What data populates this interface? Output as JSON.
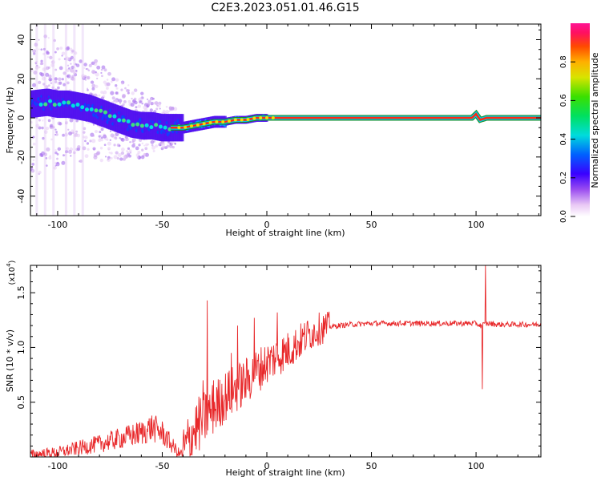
{
  "figure_title": "C2E3.2023.051.01.46.G15",
  "chart_data": [
    {
      "type": "heatmap",
      "name": "spectrogram",
      "title": "",
      "xlabel": "Height of straight line (km)",
      "ylabel": "Frequency (Hz)",
      "xlim": [
        -113,
        131
      ],
      "ylim": [
        -50,
        48
      ],
      "xticks": [
        -100,
        -50,
        0,
        50,
        100
      ],
      "yticks": [
        -40,
        -20,
        0,
        20,
        40
      ],
      "xtick_labels": [
        "-100",
        "-50",
        "0",
        "50",
        "100"
      ],
      "ytick_labels": [
        "-40",
        "-20",
        "0",
        "20",
        "40"
      ],
      "colorbar": {
        "label": "Normalized spectral amplitude",
        "range": [
          0,
          1
        ],
        "ticks": [
          0.0,
          0.2,
          0.4,
          0.6,
          0.8
        ],
        "tick_labels": [
          "0.0",
          "0.2",
          "0.4",
          "0.6",
          "0.8"
        ]
      },
      "ridge": {
        "x": [
          -113,
          -105,
          -100,
          -95,
          -90,
          -85,
          -80,
          -75,
          -70,
          -65,
          -60,
          -55,
          -50,
          -45,
          -40,
          -35,
          -30,
          -25,
          -20,
          -15,
          -10,
          -5,
          0,
          5,
          10,
          20,
          40,
          60,
          80,
          98,
          100,
          102,
          105,
          131
        ],
        "y": [
          7,
          8,
          7,
          7,
          6,
          5,
          3,
          1,
          -1,
          -3,
          -4,
          -4,
          -5,
          -5,
          -5,
          -4,
          -3,
          -2,
          -2,
          -1,
          -1,
          0,
          0,
          0,
          0,
          0,
          0,
          0,
          0,
          0,
          2,
          -1,
          0,
          0
        ]
      }
    },
    {
      "type": "line",
      "name": "snr",
      "title": "",
      "xlabel": "Height of straight line (km)",
      "ylabel": "SNR (10 * v/v)",
      "y_multiplier_label": "(x10",
      "y_multiplier_exp": "4",
      "y_multiplier_close": ")",
      "xlim": [
        -113,
        131
      ],
      "ylim": [
        0,
        1.75
      ],
      "xticks": [
        -100,
        -50,
        0,
        50,
        100
      ],
      "yticks": [
        0.5,
        1.0,
        1.5
      ],
      "xtick_labels": [
        "-100",
        "-50",
        "0",
        "50",
        "100"
      ],
      "ytick_labels": [
        "0.5",
        "1.0",
        "1.5"
      ],
      "series_color": "#e8282a",
      "envelope": {
        "x": [
          -113,
          -100,
          -90,
          -80,
          -70,
          -60,
          -55,
          -50,
          -45,
          -42,
          -40,
          -35,
          -30,
          -25,
          -20,
          -15,
          -10,
          -5,
          0,
          5,
          10,
          15,
          20,
          25,
          30,
          40,
          50,
          60,
          70,
          80,
          90,
          95,
          100,
          102,
          104,
          106,
          110,
          120,
          131
        ],
        "y": [
          0.02,
          0.04,
          0.08,
          0.12,
          0.17,
          0.22,
          0.27,
          0.22,
          0.1,
          0.03,
          0.03,
          0.24,
          0.35,
          0.45,
          0.55,
          0.62,
          0.69,
          0.78,
          0.86,
          0.92,
          0.97,
          1.04,
          1.12,
          1.17,
          1.19,
          1.21,
          1.22,
          1.22,
          1.22,
          1.22,
          1.22,
          1.22,
          1.22,
          1.2,
          1.21,
          1.22,
          1.21,
          1.21,
          1.21
        ]
      },
      "peaks": [
        {
          "x": -28.5,
          "y": 1.43
        },
        {
          "x": -30.5,
          "y": 0.7
        },
        {
          "x": -25.5,
          "y": 0.7
        },
        {
          "x": -14,
          "y": 1.2
        },
        {
          "x": -17,
          "y": 0.95
        },
        {
          "x": -6,
          "y": 1.27
        },
        {
          "x": 5,
          "y": 1.32
        },
        {
          "x": 104.5,
          "y": 1.75
        },
        {
          "x": 103,
          "y": 0.62
        }
      ]
    }
  ]
}
